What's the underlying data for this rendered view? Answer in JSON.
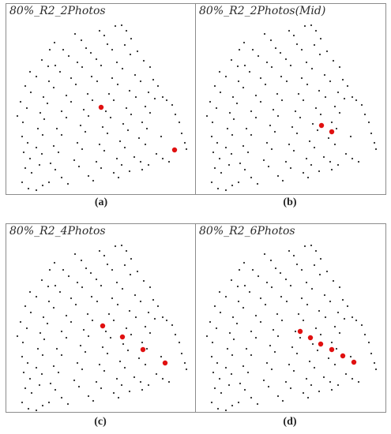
{
  "colors": {
    "dot": "#2a2a2a",
    "highlight": "#e01010",
    "border": "#8c8c8c"
  },
  "panels": [
    {
      "title": "80%_R2_2Photos",
      "caption_letter": "a",
      "highlights": 2
    },
    {
      "title": "80%_R2_2Photos(Mid)",
      "caption_letter": "b",
      "highlights": 2
    },
    {
      "title": "80%_R2_4Photos",
      "caption_letter": "c",
      "highlights": 4
    },
    {
      "title": "80%_R2_6Photos",
      "caption_letter": "d",
      "highlights": 6
    }
  ]
}
